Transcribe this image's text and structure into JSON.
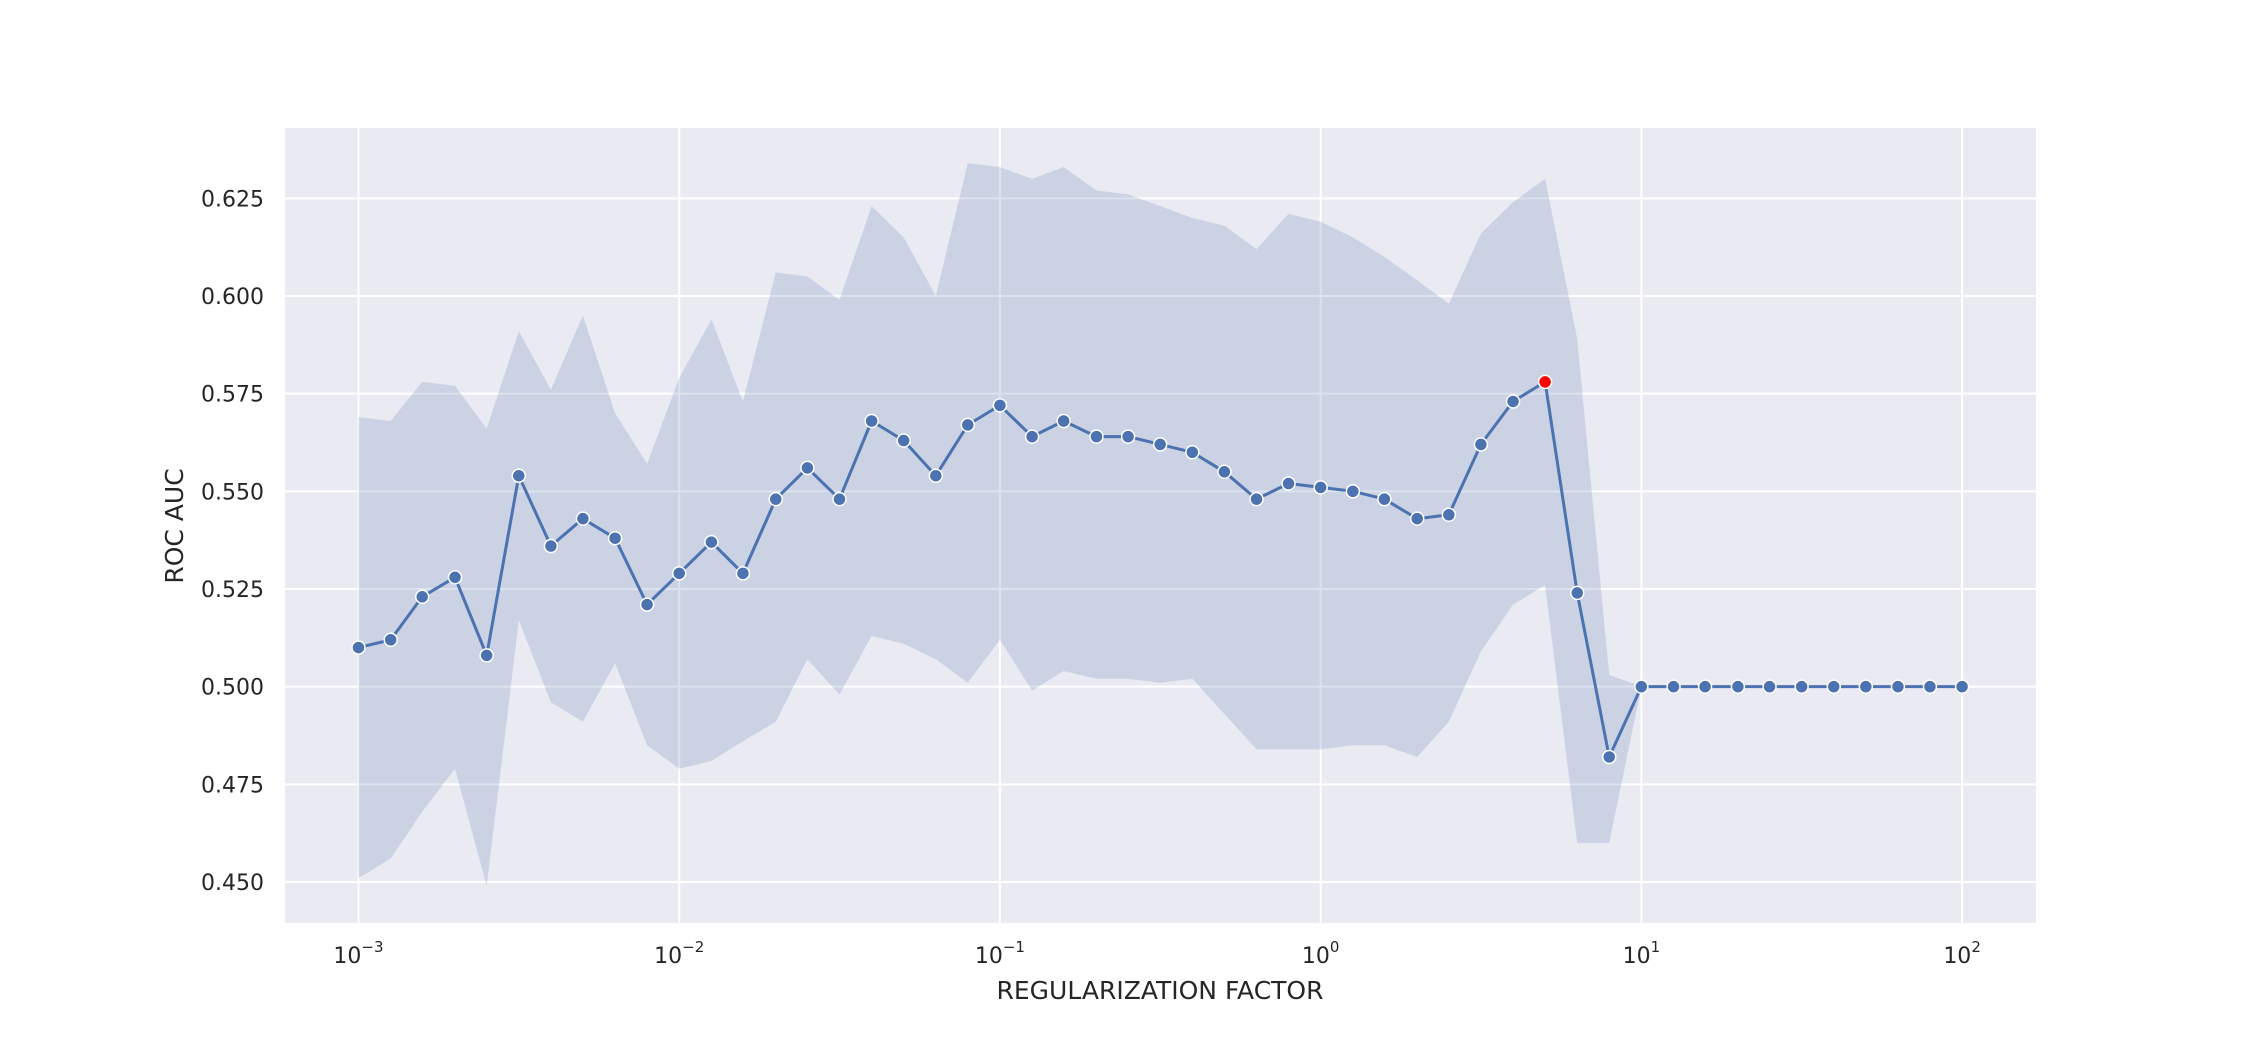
{
  "chart_data": {
    "type": "line",
    "title": "",
    "xlabel": "REGULARIZATION FACTOR",
    "ylabel": "ROC AUC",
    "x_scale": "log",
    "xlim": [
      0.00059,
      170
    ],
    "ylim": [
      0.4395,
      0.643
    ],
    "grid": true,
    "x_ticks": [
      {
        "value": 0.001,
        "base": "10",
        "exp": "−3"
      },
      {
        "value": 0.01,
        "base": "10",
        "exp": "−2"
      },
      {
        "value": 0.1,
        "base": "10",
        "exp": "−1"
      },
      {
        "value": 1,
        "base": "10",
        "exp": "0"
      },
      {
        "value": 10,
        "base": "10",
        "exp": "1"
      },
      {
        "value": 100,
        "base": "10",
        "exp": "2"
      }
    ],
    "y_ticks": [
      {
        "value": 0.45,
        "label": "0.450"
      },
      {
        "value": 0.475,
        "label": "0.475"
      },
      {
        "value": 0.5,
        "label": "0.500"
      },
      {
        "value": 0.525,
        "label": "0.525"
      },
      {
        "value": 0.55,
        "label": "0.550"
      },
      {
        "value": 0.575,
        "label": "0.575"
      },
      {
        "value": 0.6,
        "label": "0.600"
      },
      {
        "value": 0.625,
        "label": "0.625"
      }
    ],
    "colors": {
      "background": "#eaeaf2",
      "grid": "#ffffff",
      "line": "#4c72b0",
      "band": "#4c72b0",
      "marker_edge": "#ffffff",
      "highlight": "#ff0000"
    },
    "series": [
      {
        "x": [
          0.001,
          0.00126,
          0.00158,
          0.002,
          0.00251,
          0.00316,
          0.00398,
          0.00501,
          0.00631,
          0.00794,
          0.01,
          0.0126,
          0.0158,
          0.02,
          0.0251,
          0.0316,
          0.0398,
          0.0501,
          0.0631,
          0.0794,
          0.1,
          0.126,
          0.158,
          0.2,
          0.251,
          0.316,
          0.398,
          0.501,
          0.631,
          0.794,
          1,
          1.26,
          1.58,
          2,
          2.51,
          3.16,
          3.98,
          5.01,
          6.31,
          7.94,
          10,
          12.6,
          15.8,
          20,
          25.1,
          31.6,
          39.8,
          50.1,
          63.1,
          79.4,
          100
        ],
        "y": [
          0.51,
          0.512,
          0.523,
          0.528,
          0.508,
          0.554,
          0.536,
          0.543,
          0.538,
          0.521,
          0.529,
          0.537,
          0.529,
          0.548,
          0.556,
          0.548,
          0.568,
          0.563,
          0.554,
          0.567,
          0.572,
          0.564,
          0.568,
          0.564,
          0.564,
          0.562,
          0.56,
          0.555,
          0.548,
          0.552,
          0.551,
          0.55,
          0.548,
          0.543,
          0.544,
          0.562,
          0.573,
          0.578,
          0.524,
          0.482,
          0.5,
          0.5,
          0.5,
          0.5,
          0.5,
          0.5,
          0.5,
          0.5,
          0.5,
          0.5,
          0.5
        ],
        "ci_upper": [
          0.569,
          0.568,
          0.578,
          0.577,
          0.566,
          0.591,
          0.576,
          0.595,
          0.57,
          0.557,
          0.579,
          0.594,
          0.573,
          0.606,
          0.605,
          0.599,
          0.623,
          0.615,
          0.6,
          0.634,
          0.633,
          0.63,
          0.633,
          0.627,
          0.626,
          0.623,
          0.62,
          0.618,
          0.612,
          0.621,
          0.619,
          0.615,
          0.61,
          0.604,
          0.598,
          0.616,
          0.624,
          0.63,
          0.589,
          0.503,
          0.5,
          0.5,
          0.5,
          0.5,
          0.5,
          0.5,
          0.5,
          0.5,
          0.5,
          0.5,
          0.5
        ],
        "ci_lower": [
          0.451,
          0.456,
          0.468,
          0.479,
          0.449,
          0.517,
          0.496,
          0.491,
          0.506,
          0.485,
          0.479,
          0.481,
          0.486,
          0.491,
          0.507,
          0.498,
          0.513,
          0.511,
          0.507,
          0.501,
          0.512,
          0.499,
          0.504,
          0.502,
          0.502,
          0.501,
          0.502,
          0.493,
          0.484,
          0.484,
          0.484,
          0.485,
          0.485,
          0.482,
          0.491,
          0.509,
          0.521,
          0.526,
          0.46,
          0.46,
          0.5,
          0.5,
          0.5,
          0.5,
          0.5,
          0.5,
          0.5,
          0.5,
          0.5,
          0.5,
          0.5
        ]
      }
    ],
    "highlight_point": {
      "x": 5.01,
      "y": 0.578
    }
  }
}
